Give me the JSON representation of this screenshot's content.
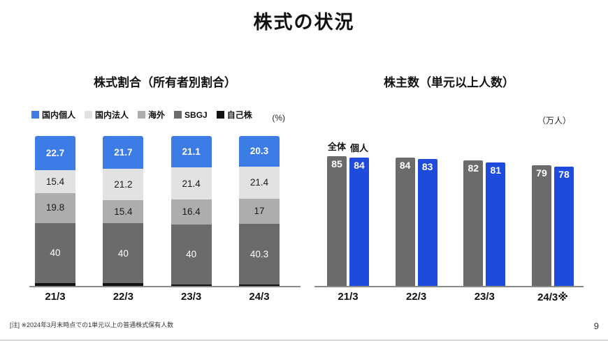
{
  "page": {
    "title": "株式の状況",
    "footnote": "[注] ※2024年3月末時点での1単元以上の普通株式保有人数",
    "page_number": "9"
  },
  "chart_data": [
    {
      "type": "bar",
      "variant": "stacked-percent",
      "title": "株式割合（所有者別割合）",
      "unit_label": "(%)",
      "categories": [
        "21/3",
        "22/3",
        "23/3",
        "24/3"
      ],
      "series": [
        {
          "name": "国内個人",
          "color": "#3D7BE5",
          "label_color": "#ffffff",
          "bold_label": true,
          "values": [
            22.7,
            21.7,
            21.1,
            20.3
          ]
        },
        {
          "name": "国内法人",
          "color": "#E2E2E2",
          "label_color": "#1a1a1a",
          "values": [
            15.4,
            21.2,
            21.4,
            21.4
          ]
        },
        {
          "name": "海外",
          "color": "#ADADAD",
          "label_color": "#1a1a1a",
          "values": [
            19.8,
            15.4,
            16.4,
            17
          ]
        },
        {
          "name": "SBGJ",
          "color": "#6B6B6B",
          "label_color": "#ffffff",
          "values": [
            40,
            40,
            40,
            40.3
          ]
        },
        {
          "name": "自己株",
          "color": "#111111",
          "show_label": false,
          "values": [
            2.1,
            1.7,
            1.1,
            1
          ]
        }
      ],
      "ylim": [
        0,
        100
      ],
      "legend_position": "top-left",
      "grid": false
    },
    {
      "type": "bar",
      "variant": "grouped",
      "title": "株主数（単元以上人数）",
      "unit_label": "（万人）",
      "categories": [
        "21/3",
        "22/3",
        "23/3",
        "24/3※"
      ],
      "series": [
        {
          "name": "全体",
          "color": "#6B6B6B",
          "values": [
            85,
            84,
            82,
            79
          ]
        },
        {
          "name": "個人",
          "color": "#1E4BDC",
          "values": [
            84,
            83,
            81,
            78
          ]
        }
      ],
      "ylim": [
        0,
        87
      ],
      "value_labels": "inside-top",
      "series_name_labels": "above-first-group",
      "grid": false
    }
  ]
}
